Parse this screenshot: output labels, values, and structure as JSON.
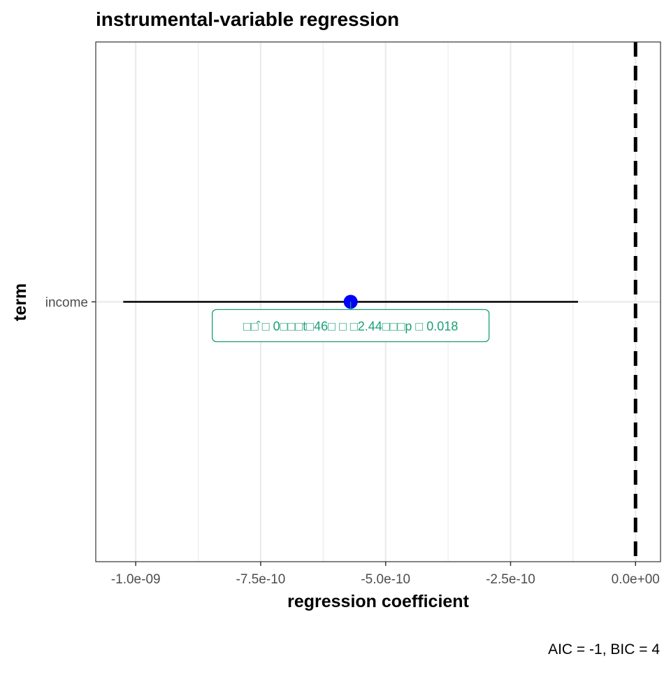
{
  "chart_data": {
    "type": "coefficient-plot",
    "title": "instrumental-variable regression",
    "xlabel": "regression coefficient",
    "ylabel": "term",
    "caption": "AIC = -1, BIC = 4",
    "xlim": [
      -1.08e-09,
      5e-11
    ],
    "x_ticks": [
      -1e-09,
      -7.5e-10,
      -5e-10,
      -2.5e-10,
      0
    ],
    "x_tick_labels": [
      "-1.0e-09",
      "-7.5e-10",
      "-5.0e-10",
      "-2.5e-10",
      "0.0e+00"
    ],
    "reference_line": 0,
    "grid": true,
    "terms": [
      {
        "term": "income",
        "estimate": -5.7e-10,
        "conf_low": -1.025e-09,
        "conf_high": -1.15e-10,
        "label": "□□̂ □ 0□□□t□46□ □ □2.44□□□p □ 0.018"
      }
    ],
    "colors": {
      "point": "#0000ff",
      "label": "#1b9e77",
      "errorbar": "#000000",
      "grid": "#ebebeb",
      "panel_border": "#333333"
    }
  }
}
